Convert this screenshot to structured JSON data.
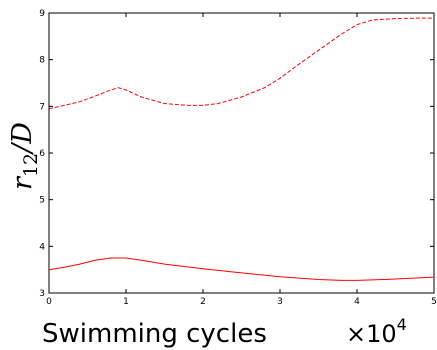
{
  "chart_data": {
    "type": "line",
    "title": "",
    "xlabel": "Swimming cycles",
    "x_multiplier_base": "×10",
    "x_multiplier_exponent": "4",
    "ylabel_main": "r",
    "ylabel_sub": "12",
    "ylabel_tail": "/D",
    "xlim": [
      0,
      5
    ],
    "ylim": [
      3,
      9
    ],
    "xticks": [
      0,
      1,
      2,
      3,
      4,
      5
    ],
    "yticks": [
      3,
      4,
      5,
      6,
      7,
      8,
      9
    ],
    "grid": false,
    "legend": false,
    "series": [
      {
        "style": "dashed",
        "color": "#ff0000",
        "x": [
          0,
          0.2,
          0.4,
          0.6,
          0.8,
          0.9,
          1.0,
          1.2,
          1.5,
          1.8,
          2.0,
          2.2,
          2.5,
          2.8,
          3.0,
          3.2,
          3.5,
          3.8,
          4.0,
          4.2,
          4.5,
          4.8,
          5.0
        ],
        "y": [
          6.95,
          7.02,
          7.1,
          7.22,
          7.35,
          7.4,
          7.35,
          7.2,
          7.06,
          7.02,
          7.02,
          7.06,
          7.2,
          7.4,
          7.6,
          7.85,
          8.2,
          8.55,
          8.75,
          8.85,
          8.88,
          8.89,
          8.89
        ]
      },
      {
        "style": "solid",
        "color": "#ff0000",
        "x": [
          0,
          0.2,
          0.4,
          0.6,
          0.8,
          1.0,
          1.2,
          1.5,
          2.0,
          2.5,
          3.0,
          3.5,
          3.8,
          4.0,
          4.2,
          4.5,
          5.0
        ],
        "y": [
          3.5,
          3.55,
          3.62,
          3.7,
          3.75,
          3.75,
          3.7,
          3.62,
          3.52,
          3.43,
          3.35,
          3.29,
          3.27,
          3.27,
          3.28,
          3.3,
          3.34
        ]
      }
    ]
  }
}
